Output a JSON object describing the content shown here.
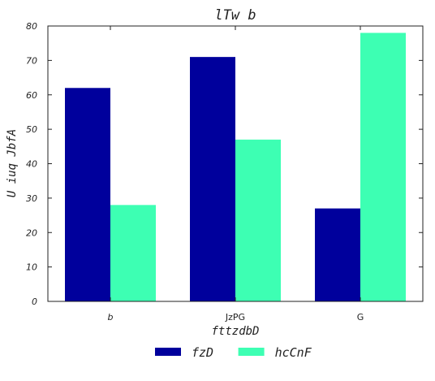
{
  "chart_data": {
    "type": "bar",
    "title": "lTw  b",
    "xlabel": "fttzdbD",
    "ylabel": "U iuq JbfA",
    "categories": [
      "b",
      "JzPG",
      "G"
    ],
    "series": [
      {
        "name": "fzD",
        "color": "#00009c",
        "values": [
          62,
          71,
          27
        ]
      },
      {
        "name": "hcCnF",
        "color": "#3dffb3",
        "values": [
          28,
          47,
          78
        ]
      }
    ],
    "ylim": [
      0,
      80
    ],
    "yticks": [
      0,
      10,
      20,
      30,
      40,
      50,
      60,
      70,
      80
    ],
    "grid": false,
    "legend_position": "bottom-center"
  }
}
